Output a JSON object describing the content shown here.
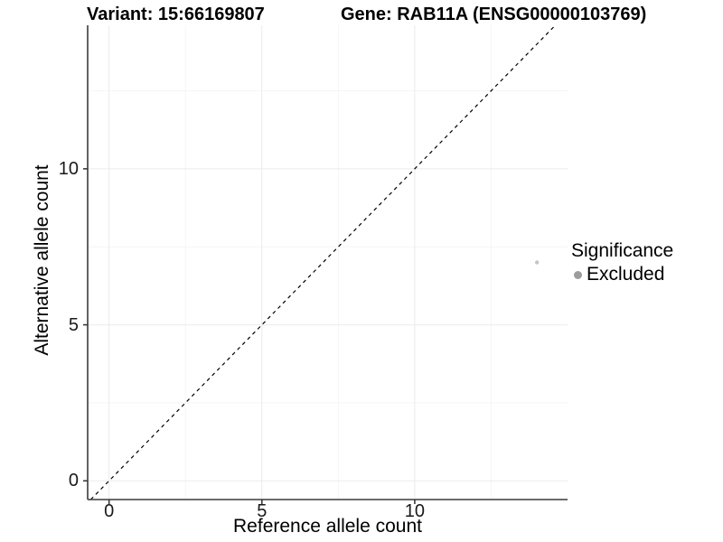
{
  "figure": {
    "title_left": "Variant: 15:66169807",
    "title_right": "Gene: RAB11A (ENSG00000103769)"
  },
  "chart_data": {
    "type": "scatter",
    "title": "Variant: 15:66169807   Gene: RAB11A (ENSG00000103769)",
    "xlabel": "Reference allele count",
    "ylabel": "Alternative allele count",
    "xlim": [
      -0.7,
      15.0
    ],
    "ylim": [
      -0.6,
      14.6
    ],
    "xticks": [
      0,
      5,
      10
    ],
    "yticks": [
      0,
      5,
      10
    ],
    "xticks_minor": [
      2.5,
      7.5,
      12.5
    ],
    "yticks_minor": [
      2.5,
      7.5,
      12.5
    ],
    "grid": true,
    "identity_line": {
      "style": "dashed",
      "from": -0.6,
      "to": 14.6,
      "color": "#000000"
    },
    "series": [
      {
        "name": "Excluded",
        "color": "#c5c5c5",
        "point_radius": 2.2,
        "points": [
          {
            "x": 14,
            "y": 7
          }
        ]
      }
    ],
    "legend": {
      "title": "Significance",
      "position": "right",
      "items": [
        {
          "label": "Excluded",
          "color": "#9c9c9c"
        }
      ]
    }
  },
  "colors": {
    "background": "#ffffff",
    "axis_line": "#3a3a3a",
    "tick_mark": "#3a3a3a",
    "grid_major": "#ebebeb",
    "grid_minor": "#f5f5f5",
    "identity_line": "#000000",
    "point": "#c5c5c5",
    "legend_dot": "#9c9c9c",
    "text": "#000000"
  }
}
